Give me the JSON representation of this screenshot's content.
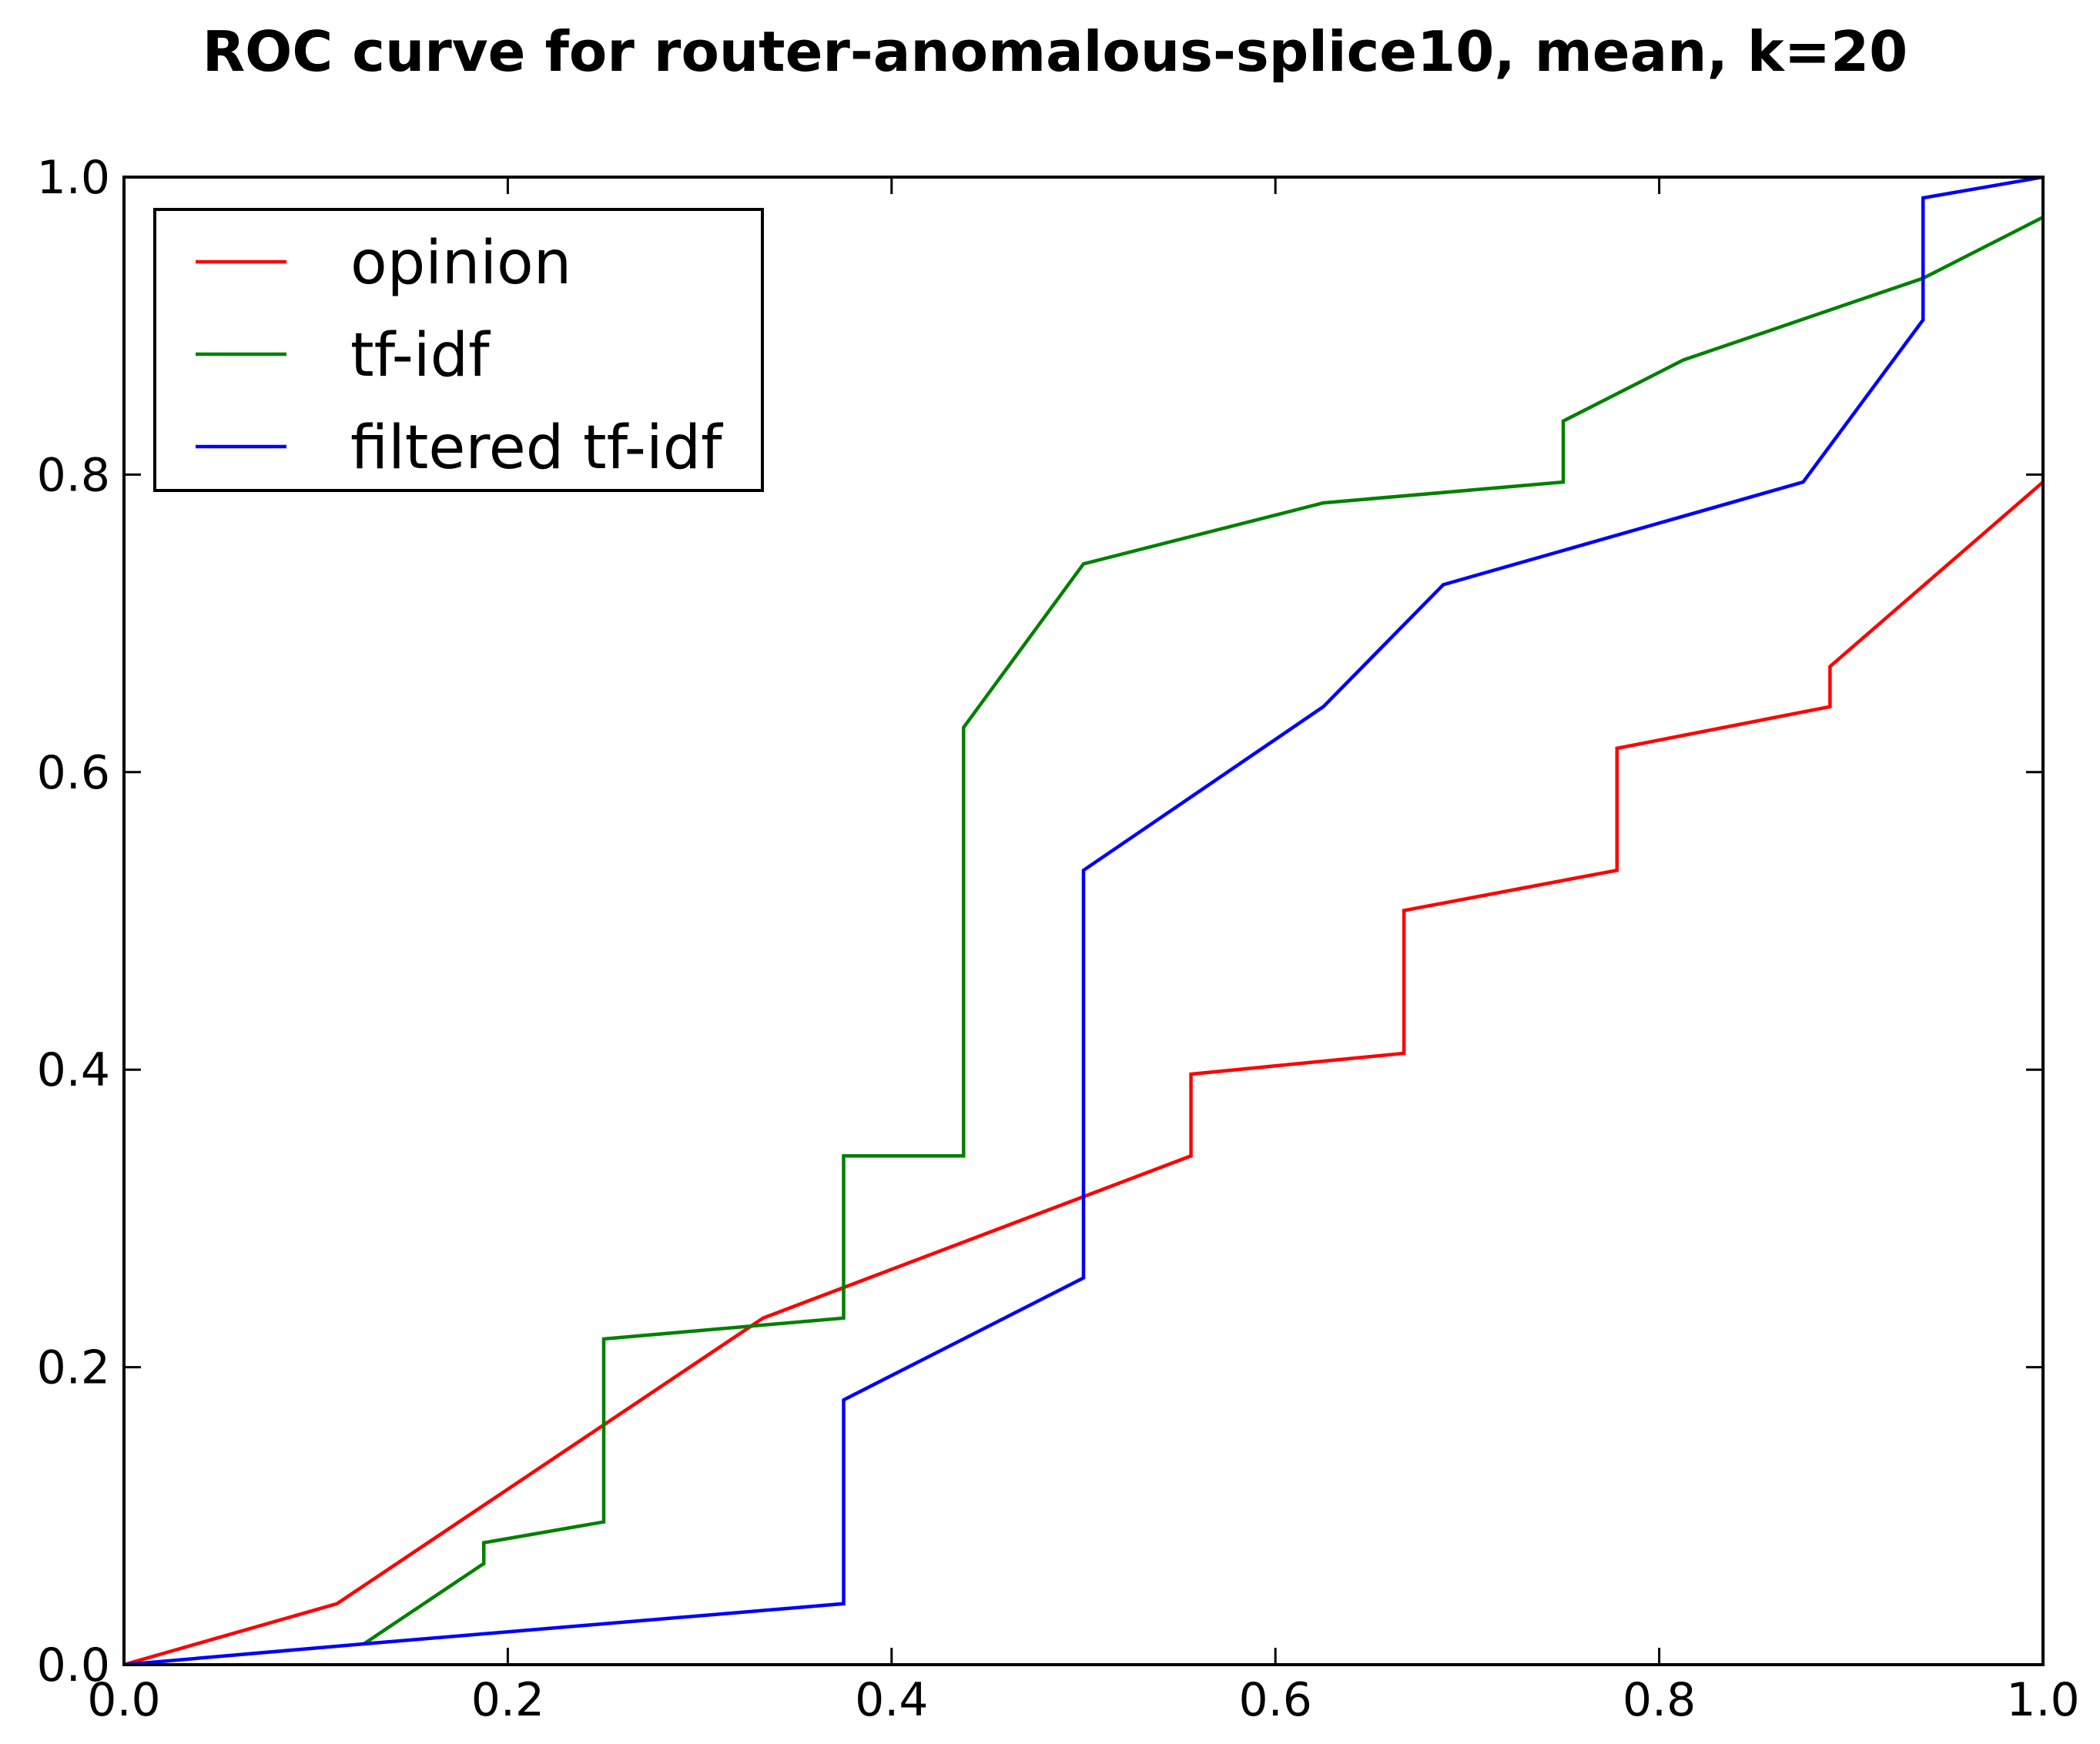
{
  "chart_data": {
    "type": "line",
    "title": "ROC curve for router-anomalous-splice10, mean, k=20",
    "xlabel": "",
    "ylabel": "",
    "xlim": [
      0.0,
      1.0
    ],
    "ylim": [
      0.0,
      1.0
    ],
    "x_ticks": [
      "0.0",
      "0.2",
      "0.4",
      "0.6",
      "0.8",
      "1.0"
    ],
    "y_ticks": [
      "0.0",
      "0.2",
      "0.4",
      "0.6",
      "0.8",
      "1.0"
    ],
    "grid": false,
    "legend_position": "upper left",
    "series": [
      {
        "name": "opinion",
        "color": "#ff0000",
        "points": [
          [
            0.0,
            0.0
          ],
          [
            0.111,
            0.041
          ],
          [
            0.333,
            0.233
          ],
          [
            0.556,
            0.342
          ],
          [
            0.556,
            0.397
          ],
          [
            0.667,
            0.411
          ],
          [
            0.667,
            0.507
          ],
          [
            0.778,
            0.534
          ],
          [
            0.778,
            0.616
          ],
          [
            0.889,
            0.644
          ],
          [
            0.889,
            0.671
          ],
          [
            1.0,
            0.795
          ]
        ]
      },
      {
        "name": "tf-idf",
        "color": "#008000",
        "points": [
          [
            0.125,
            0.014
          ],
          [
            0.1875,
            0.068
          ],
          [
            0.1875,
            0.082
          ],
          [
            0.25,
            0.096
          ],
          [
            0.25,
            0.219
          ],
          [
            0.375,
            0.233
          ],
          [
            0.375,
            0.342
          ],
          [
            0.4375,
            0.342
          ],
          [
            0.4375,
            0.63
          ],
          [
            0.5,
            0.74
          ],
          [
            0.625,
            0.781
          ],
          [
            0.75,
            0.795
          ],
          [
            0.75,
            0.836
          ],
          [
            0.8125,
            0.877
          ],
          [
            0.9375,
            0.932
          ],
          [
            1.0,
            0.973
          ]
        ]
      },
      {
        "name": "filtered tf-idf",
        "color": "#0000ff",
        "points": [
          [
            0.0,
            0.0
          ],
          [
            0.125,
            0.014
          ],
          [
            0.375,
            0.041
          ],
          [
            0.375,
            0.178
          ],
          [
            0.5,
            0.26
          ],
          [
            0.5,
            0.534
          ],
          [
            0.625,
            0.644
          ],
          [
            0.6875,
            0.726
          ],
          [
            0.875,
            0.795
          ],
          [
            0.9375,
            0.904
          ],
          [
            0.9375,
            0.986
          ],
          [
            1.0,
            1.0
          ]
        ]
      }
    ]
  }
}
